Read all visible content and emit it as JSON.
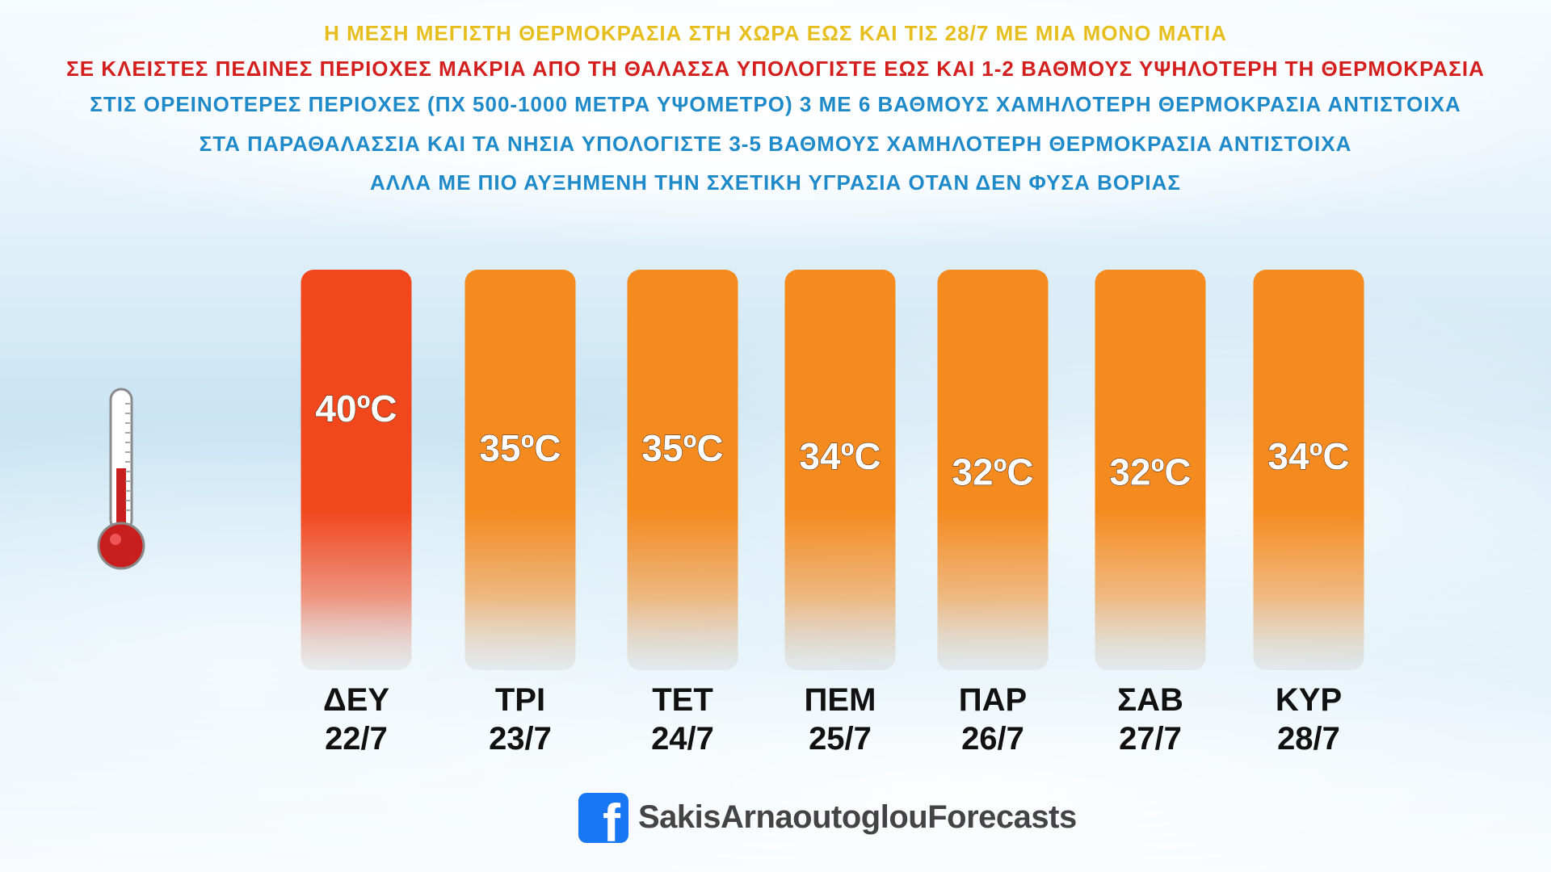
{
  "headlines": [
    {
      "text": "Η ΜΕΣΗ ΜΕΓΙΣΤΗ ΘΕΡΜΟΚΡΑΣΙΑ ΣΤΗ ΧΩΡΑ ΕΩΣ ΚΑΙ ΤΙΣ 28/7 ΜΕ ΜΙΑ ΜΟΝΟ ΜΑΤΙΑ",
      "color": "#e6bf1f"
    },
    {
      "text": "ΣΕ ΚΛΕΙΣΤΕΣ ΠΕΔΙΝΕΣ ΠΕΡΙΟΧΕΣ ΜΑΚΡΙΑ ΑΠΟ ΤΗ ΘΑΛΑΣΣΑ ΥΠΟΛΟΓΙΣΤΕ ΕΩΣ ΚΑΙ 1-2 ΒΑΘΜΟΥΣ ΥΨΗΛΟΤΕΡΗ ΤΗ ΘΕΡΜΟΚΡΑΣΙΑ",
      "color": "#d41f1f"
    },
    {
      "text": "ΣΤΙΣ ΟΡΕΙΝΟΤΕΡΕΣ ΠΕΡΙΟΧΕΣ (ΠΧ 500-1000 ΜΕΤΡΑ ΥΨΟΜΕΤΡΟ) 3 ΜΕ 6 ΒΑΘΜΟΥΣ ΧΑΜΗΛΟΤΕΡΗ ΘΕΡΜΟΚΡΑΣΙΑ ΑΝΤΙΣΤΟΙΧΑ",
      "color": "#1f8ac9"
    },
    {
      "text": "ΣΤΑ ΠΑΡΑΘΑΛΑΣΣΙΑ ΚΑΙ ΤΑ ΝΗΣΙΑ ΥΠΟΛΟΓΙΣΤΕ 3-5 ΒΑΘΜΟΥΣ ΧΑΜΗΛΟΤΕΡΗ ΘΕΡΜΟΚΡΑΣΙΑ ΑΝΤΙΣΤΟΙΧΑ",
      "color": "#1f8ac9"
    },
    {
      "text": "ΑΛΛΑ ΜΕ ΠΙΟ ΑΥΞΗΜΕΝΗ ΤΗΝ ΣΧΕΤΙΚΗ ΥΓΡΑΣΙΑ ΟΤΑΝ ΔΕΝ ΦΥΣΑ ΒΟΡΙΑΣ",
      "color": "#1f8ac9"
    }
  ],
  "chart_data": {
    "type": "bar",
    "categories": [
      "ΔΕΥ 22/7",
      "ΤΡΙ 23/7",
      "ΤΕΤ 24/7",
      "ΠΕΜ 25/7",
      "ΠΑΡ 26/7",
      "ΣΑΒ 27/7",
      "ΚΥΡ 28/7"
    ],
    "days": [
      "ΔΕΥ",
      "ΤΡΙ",
      "ΤΕΤ",
      "ΠΕΜ",
      "ΠΑΡ",
      "ΣΑΒ",
      "ΚΥΡ"
    ],
    "dates": [
      "22/7",
      "23/7",
      "24/7",
      "25/7",
      "26/7",
      "27/7",
      "28/7"
    ],
    "values": [
      40,
      35,
      35,
      34,
      32,
      32,
      34
    ],
    "value_labels": [
      "40ºC",
      "35ºC",
      "35ºC",
      "34ºC",
      "32ºC",
      "32ºC",
      "34ºC"
    ],
    "unit": "ºC",
    "colors": {
      "hot": "#f2471c",
      "warm": "#f58a1f",
      "fade": "#c9c7c4"
    },
    "grid": false,
    "legend": "none"
  },
  "icons": {
    "thermometer": "thermometer-icon",
    "facebook": "facebook-icon"
  },
  "footer": {
    "facebook_glyph": "f",
    "handle": "SakisArnaoutoglouForecasts",
    "brand_color": "#1877f2"
  }
}
